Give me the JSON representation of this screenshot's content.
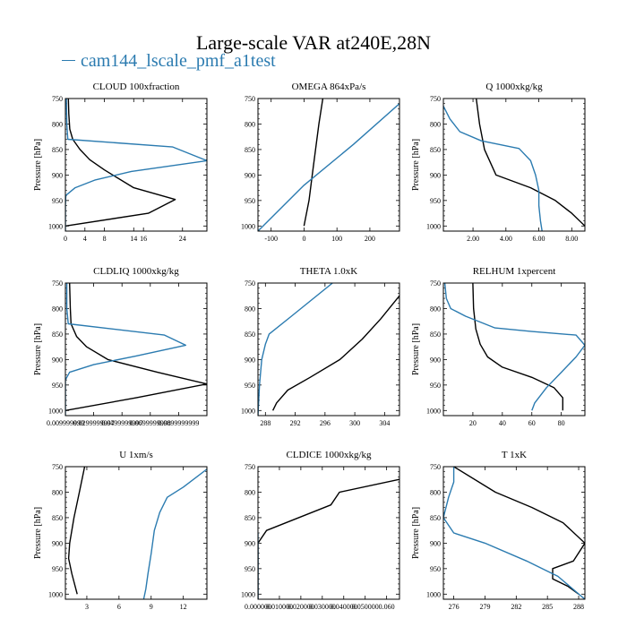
{
  "figure": {
    "title": "Large-scale VAR at240E,28N",
    "legend": [
      {
        "name": "cam144_lscale_pmf_a1test",
        "color": "#2b7bb0"
      }
    ]
  },
  "colors": {
    "blue_series": "#2b7bb0",
    "black_series": "#000000"
  },
  "chart_data": [
    {
      "type": "line",
      "title": "CLOUD  100xfraction",
      "ylabel": "Pressure [hPa]",
      "xlim": [
        0,
        29
      ],
      "ylim": [
        1010,
        750
      ],
      "y_reversed": true,
      "xticks": [
        0,
        4,
        8,
        14,
        16,
        24
      ],
      "xtick_labels": [
        "0",
        "4",
        "8",
        "14",
        "16",
        "24"
      ],
      "yticks": [
        750,
        800,
        850,
        900,
        950,
        1000
      ],
      "series": [
        {
          "color": "black",
          "points": [
            [
              0.6,
              750
            ],
            [
              0.7,
              780
            ],
            [
              0.9,
              810
            ],
            [
              1.5,
              830
            ],
            [
              3,
              850
            ],
            [
              5,
              870
            ],
            [
              8,
              890
            ],
            [
              14,
              925
            ],
            [
              22.5,
              948
            ],
            [
              17,
              975
            ],
            [
              0,
              1000
            ]
          ]
        },
        {
          "color": "blue",
          "points": [
            [
              0.2,
              750
            ],
            [
              0.3,
              800
            ],
            [
              0.5,
              830
            ],
            [
              22,
              845
            ],
            [
              29,
              872
            ],
            [
              13.5,
              893
            ],
            [
              6,
              910
            ],
            [
              2,
              925
            ],
            [
              0.1,
              940
            ],
            [
              0,
              960
            ],
            [
              0,
              1010
            ]
          ]
        }
      ]
    },
    {
      "type": "line",
      "title": "OMEGA  864xPa/s",
      "ylabel": "",
      "xlim": [
        -140,
        290
      ],
      "ylim": [
        1010,
        750
      ],
      "y_reversed": true,
      "xticks": [
        -100,
        0,
        100,
        200
      ],
      "xtick_labels": [
        "-100",
        "0",
        "100",
        "200"
      ],
      "yticks": [
        750,
        800,
        850,
        900,
        950,
        1000
      ],
      "series": [
        {
          "color": "black",
          "points": [
            [
              57,
              750
            ],
            [
              45,
              800
            ],
            [
              35,
              850
            ],
            [
              25,
              900
            ],
            [
              15,
              950
            ],
            [
              0,
              1000
            ]
          ]
        },
        {
          "color": "blue",
          "points": [
            [
              290,
              760
            ],
            [
              150,
              840
            ],
            [
              0,
              920
            ],
            [
              -140,
              1010
            ]
          ]
        }
      ]
    },
    {
      "type": "line",
      "title": "Q  1000xkg/kg",
      "ylabel": "Pressure [hPa]",
      "xlim": [
        0.2,
        8.8
      ],
      "ylim": [
        1010,
        750
      ],
      "y_reversed": true,
      "xticks": [
        2,
        4,
        6,
        8
      ],
      "xtick_labels": [
        "2.00",
        "4.00",
        "6.00",
        "8.00"
      ],
      "yticks": [
        750,
        800,
        850,
        900,
        950,
        1000
      ],
      "series": [
        {
          "color": "black",
          "points": [
            [
              2.2,
              750
            ],
            [
              2.4,
              800
            ],
            [
              2.7,
              850
            ],
            [
              3.4,
              900
            ],
            [
              5.5,
              925
            ],
            [
              7,
              950
            ],
            [
              8,
              975
            ],
            [
              8.8,
              1000
            ]
          ]
        },
        {
          "color": "blue",
          "points": [
            [
              0.2,
              765
            ],
            [
              0.6,
              790
            ],
            [
              1.2,
              815
            ],
            [
              2.5,
              833
            ],
            [
              4.8,
              848
            ],
            [
              5.5,
              872
            ],
            [
              5.8,
              900
            ],
            [
              6,
              930
            ],
            [
              6,
              960
            ],
            [
              6.1,
              990
            ],
            [
              6.2,
              1010
            ]
          ]
        }
      ]
    },
    {
      "type": "line",
      "title": "CLDLIQ  1000xkg/kg",
      "ylabel": "Pressure [hPa]",
      "xlim": [
        0,
        100
      ],
      "ylim": [
        1010,
        750
      ],
      "y_reversed": true,
      "xticks": [
        0,
        20,
        40,
        60,
        80
      ],
      "xtick_labels": [
        "0.009999999",
        "0.0299999997",
        "0.0499999997",
        "0.0699999998",
        "0.0899999999"
      ],
      "yticks": [
        750,
        800,
        850,
        900,
        950,
        1000
      ],
      "series": [
        {
          "color": "black",
          "points": [
            [
              3,
              750
            ],
            [
              3.5,
              800
            ],
            [
              4,
              830
            ],
            [
              8,
              855
            ],
            [
              15,
              875
            ],
            [
              30,
              900
            ],
            [
              65,
              925
            ],
            [
              100,
              948
            ],
            [
              50,
              975
            ],
            [
              0,
              1000
            ]
          ]
        },
        {
          "color": "blue",
          "points": [
            [
              1,
              750
            ],
            [
              1,
              800
            ],
            [
              2,
              830
            ],
            [
              70,
              852
            ],
            [
              85,
              872
            ],
            [
              50,
              893
            ],
            [
              20,
              910
            ],
            [
              3,
              925
            ],
            [
              0,
              940
            ],
            [
              0,
              1010
            ]
          ]
        }
      ]
    },
    {
      "type": "line",
      "title": "THETA  1.0xK",
      "ylabel": "",
      "xlim": [
        287,
        306
      ],
      "ylim": [
        1010,
        750
      ],
      "y_reversed": true,
      "xticks": [
        288,
        292,
        296,
        300,
        304
      ],
      "xtick_labels": [
        "288",
        "292",
        "296",
        "300",
        "304"
      ],
      "yticks": [
        750,
        800,
        850,
        900,
        950,
        1000
      ],
      "series": [
        {
          "color": "black",
          "points": [
            [
              306,
              775
            ],
            [
              303.5,
              820
            ],
            [
              301,
              860
            ],
            [
              298,
              900
            ],
            [
              294,
              935
            ],
            [
              291,
              960
            ],
            [
              289.5,
              985
            ],
            [
              289,
              1000
            ]
          ]
        },
        {
          "color": "blue",
          "points": [
            [
              297,
              750
            ],
            [
              291.5,
              815
            ],
            [
              288.5,
              850
            ],
            [
              288,
              870
            ],
            [
              287.5,
              900
            ],
            [
              287.2,
              950
            ],
            [
              287,
              1010
            ]
          ]
        }
      ]
    },
    {
      "type": "line",
      "title": "RELHUM  1xpercent",
      "ylabel": "Pressure [hPa]",
      "xlim": [
        0,
        96
      ],
      "ylim": [
        1010,
        750
      ],
      "y_reversed": true,
      "xticks": [
        20,
        40,
        60,
        80
      ],
      "xtick_labels": [
        "20",
        "40",
        "60",
        "80"
      ],
      "yticks": [
        750,
        800,
        850,
        900,
        950,
        1000
      ],
      "series": [
        {
          "color": "black",
          "points": [
            [
              20,
              750
            ],
            [
              20.5,
              800
            ],
            [
              22,
              840
            ],
            [
              25,
              870
            ],
            [
              30,
              895
            ],
            [
              40,
              915
            ],
            [
              60,
              935
            ],
            [
              75,
              955
            ],
            [
              81,
              975
            ],
            [
              81,
              1000
            ]
          ]
        },
        {
          "color": "blue",
          "points": [
            [
              1,
              750
            ],
            [
              2,
              780
            ],
            [
              5,
              800
            ],
            [
              15,
              815
            ],
            [
              35,
              838
            ],
            [
              60,
              845
            ],
            [
              90,
              852
            ],
            [
              96,
              872
            ],
            [
              90,
              895
            ],
            [
              80,
              925
            ],
            [
              70,
              955
            ],
            [
              62,
              985
            ],
            [
              60,
              1000
            ]
          ]
        }
      ]
    },
    {
      "type": "line",
      "title": "U  1xm/s",
      "ylabel": "Pressure [hPa]",
      "xlim": [
        1,
        14.2
      ],
      "ylim": [
        1010,
        750
      ],
      "y_reversed": true,
      "xticks": [
        3,
        6,
        9,
        12
      ],
      "xtick_labels": [
        "3",
        "6",
        "9",
        "12"
      ],
      "yticks": [
        750,
        800,
        850,
        900,
        950,
        1000
      ],
      "series": [
        {
          "color": "black",
          "points": [
            [
              2.8,
              750
            ],
            [
              2.3,
              800
            ],
            [
              1.8,
              850
            ],
            [
              1.4,
              900
            ],
            [
              1.3,
              930
            ],
            [
              1.6,
              960
            ],
            [
              2.1,
              1000
            ]
          ]
        },
        {
          "color": "blue",
          "points": [
            [
              14.2,
              755
            ],
            [
              12,
              790
            ],
            [
              10.5,
              810
            ],
            [
              9.8,
              840
            ],
            [
              9.3,
              875
            ],
            [
              9,
              920
            ],
            [
              8.7,
              960
            ],
            [
              8.5,
              990
            ],
            [
              8.3,
              1010
            ]
          ]
        }
      ]
    },
    {
      "type": "line",
      "title": "CLDICE  1000xkg/kg",
      "ylabel": "",
      "xlim": [
        0,
        0.066
      ],
      "ylim": [
        1010,
        750
      ],
      "y_reversed": true,
      "xticks": [
        0,
        0.01,
        0.02,
        0.03,
        0.04,
        0.05,
        0.06
      ],
      "xtick_labels": [
        "0.000000",
        "0.010000",
        "0.020000",
        "0.030000",
        "0.040000",
        "0.050000",
        "0.060"
      ],
      "yticks": [
        750,
        800,
        850,
        900,
        950,
        1000
      ],
      "series": [
        {
          "color": "black",
          "points": [
            [
              0.066,
              775
            ],
            [
              0.038,
              800
            ],
            [
              0.034,
              825
            ],
            [
              0.004,
              875
            ],
            [
              0,
              900
            ],
            [
              0,
              1010
            ]
          ]
        },
        {
          "color": "blue",
          "points": [
            [
              0,
              880
            ],
            [
              0,
              1010
            ]
          ]
        }
      ]
    },
    {
      "type": "line",
      "title": "T  1xK",
      "ylabel": "Pressure [hPa]",
      "xlim": [
        275,
        288.6
      ],
      "ylim": [
        1010,
        750
      ],
      "y_reversed": true,
      "xticks": [
        276,
        279,
        282,
        285,
        288
      ],
      "xtick_labels": [
        "276",
        "279",
        "282",
        "285",
        "288"
      ],
      "yticks": [
        750,
        800,
        850,
        900,
        950,
        1000
      ],
      "series": [
        {
          "color": "black",
          "points": [
            [
              276,
              750
            ],
            [
              280,
              800
            ],
            [
              283.5,
              830
            ],
            [
              286.5,
              860
            ],
            [
              288.6,
              900
            ],
            [
              287.5,
              935
            ],
            [
              285.5,
              950
            ],
            [
              285.5,
              970
            ],
            [
              287,
              985
            ],
            [
              288,
              1000
            ]
          ]
        },
        {
          "color": "blue",
          "points": [
            [
              276,
              750
            ],
            [
              276,
              780
            ],
            [
              275.5,
              810
            ],
            [
              275,
              850
            ],
            [
              276,
              880
            ],
            [
              279,
              900
            ],
            [
              283,
              935
            ],
            [
              286,
              965
            ],
            [
              288.6,
              1010
            ]
          ]
        }
      ]
    }
  ]
}
